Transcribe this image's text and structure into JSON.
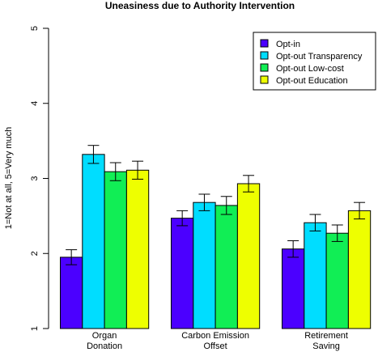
{
  "chart_data": {
    "type": "bar",
    "title": "Uneasiness due to Authority Intervention",
    "xlabel": "",
    "ylabel": "1=Not at all, 5=Very much",
    "ylim": [
      1,
      5
    ],
    "yticks": [
      "1",
      "2",
      "3",
      "4",
      "5"
    ],
    "categories": [
      [
        "Organ",
        "Donation"
      ],
      [
        "Carbon Emission",
        "Offset"
      ],
      [
        "Retirement",
        "Saving"
      ]
    ],
    "series": [
      {
        "name": "Opt-in",
        "color": "#4b00ff",
        "values": [
          1.95,
          2.47,
          2.06
        ],
        "error": [
          0.1,
          0.1,
          0.11
        ]
      },
      {
        "name": "Opt-out Transparency",
        "color": "#00ddff",
        "values": [
          3.32,
          2.68,
          2.41
        ],
        "error": [
          0.12,
          0.11,
          0.11
        ]
      },
      {
        "name": "Opt-out Low-cost",
        "color": "#11ee55",
        "values": [
          3.09,
          2.64,
          2.27
        ],
        "error": [
          0.12,
          0.12,
          0.11
        ]
      },
      {
        "name": "Opt-out Education",
        "color": "#eeff00",
        "values": [
          3.11,
          2.93,
          2.57
        ],
        "error": [
          0.12,
          0.11,
          0.11
        ]
      }
    ],
    "error_bars": true,
    "legend_position": "top-right",
    "grid": false
  }
}
